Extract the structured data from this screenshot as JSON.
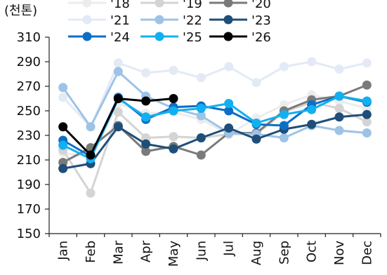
{
  "chart_data": {
    "type": "line",
    "ylabel": "(천톤)",
    "ylim": [
      150,
      310
    ],
    "yticks": [
      150,
      170,
      190,
      210,
      230,
      250,
      270,
      290,
      310
    ],
    "grid": false,
    "legend_position": "top",
    "categories": [
      "Jan",
      "Feb",
      "Mar",
      "Apr",
      "May",
      "Jun",
      "Jul",
      "Aug",
      "Sep",
      "Oct",
      "Nov",
      "Dec"
    ],
    "series": [
      {
        "name": "'18",
        "color": "#ececec",
        "values": [
          216,
          212,
          256,
          248,
          249,
          243,
          231,
          244,
          255,
          263,
          258,
          252
        ]
      },
      {
        "name": "'19",
        "color": "#d4d4d4",
        "values": [
          218,
          183,
          249,
          228,
          229,
          228,
          231,
          231,
          249,
          257,
          252,
          241
        ]
      },
      {
        "name": "'20",
        "color": "#7a7a7a",
        "values": [
          208,
          220,
          238,
          217,
          221,
          214,
          232,
          232,
          250,
          259,
          262,
          271
        ]
      },
      {
        "name": "'21",
        "color": "#e3eaf6",
        "values": [
          261,
          237,
          289,
          281,
          283,
          277,
          286,
          273,
          286,
          290,
          284,
          289
        ]
      },
      {
        "name": "'22",
        "color": "#9dc3e6",
        "values": [
          269,
          237,
          282,
          262,
          252,
          246,
          232,
          231,
          228,
          238,
          234,
          232
        ]
      },
      {
        "name": "'23",
        "color": "#1f4e79",
        "values": [
          203,
          207,
          237,
          223,
          219,
          228,
          236,
          227,
          235,
          239,
          245,
          247
        ]
      },
      {
        "name": "'24",
        "color": "#0b6fc6",
        "values": [
          226,
          213,
          261,
          243,
          253,
          254,
          250,
          239,
          238,
          255,
          262,
          257
        ]
      },
      {
        "name": "'25",
        "color": "#12b0f0",
        "values": [
          222,
          211,
          260,
          245,
          250,
          252,
          256,
          240,
          247,
          251,
          262,
          258
        ]
      },
      {
        "name": "'26",
        "color": "#000000",
        "values": [
          237,
          214,
          260,
          258,
          260,
          null,
          null,
          null,
          null,
          null,
          null,
          null
        ]
      }
    ]
  }
}
